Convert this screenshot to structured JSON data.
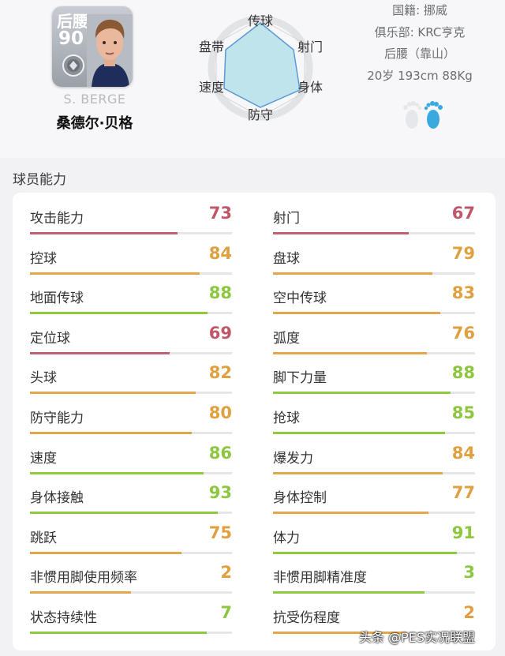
{
  "player": {
    "position": "后腰",
    "overall": "90",
    "name_en": "S. BERGE",
    "name_cn": "桑德尔·贝格"
  },
  "radar": {
    "labels": {
      "top": "传球",
      "top_right": "射门",
      "bottom_right": "身体",
      "bottom": "防守",
      "bottom_left": "速度",
      "top_left": "盘带"
    }
  },
  "info": {
    "nationality": "国籍: 挪威",
    "club": "俱乐部: KRC亨克",
    "role": "后腰（靠山）",
    "physical": "20岁 193cm 88Kg"
  },
  "section_title": "球员能力",
  "colors": {
    "red": "#c0566a",
    "orange": "#e0a040",
    "green": "#8dc63f",
    "bar_red": "#c06070",
    "bar_orange": "#e3a64a",
    "bar_green": "#8fcb3c"
  },
  "left_stats": [
    {
      "label": "攻击能力",
      "value": "73",
      "level": 73,
      "tier": "red"
    },
    {
      "label": "控球",
      "value": "84",
      "level": 84,
      "tier": "orange"
    },
    {
      "label": "地面传球",
      "value": "88",
      "level": 88,
      "tier": "green"
    },
    {
      "label": "定位球",
      "value": "69",
      "level": 69,
      "tier": "red"
    },
    {
      "label": "头球",
      "value": "82",
      "level": 82,
      "tier": "orange"
    },
    {
      "label": "防守能力",
      "value": "80",
      "level": 80,
      "tier": "orange"
    },
    {
      "label": "速度",
      "value": "86",
      "level": 86,
      "tier": "green"
    },
    {
      "label": "身体接触",
      "value": "93",
      "level": 93,
      "tier": "green"
    },
    {
      "label": "跳跃",
      "value": "75",
      "level": 75,
      "tier": "orange"
    },
    {
      "label": "非惯用脚使用频率",
      "value": "2",
      "level": 50,
      "tier": "orange"
    },
    {
      "label": "状态持续性",
      "value": "7",
      "level": 87.5,
      "tier": "green"
    }
  ],
  "right_stats": [
    {
      "label": "射门",
      "value": "67",
      "level": 67,
      "tier": "red"
    },
    {
      "label": "盘球",
      "value": "79",
      "level": 79,
      "tier": "orange"
    },
    {
      "label": "空中传球",
      "value": "83",
      "level": 83,
      "tier": "orange"
    },
    {
      "label": "弧度",
      "value": "76",
      "level": 76,
      "tier": "orange"
    },
    {
      "label": "脚下力量",
      "value": "88",
      "level": 88,
      "tier": "green"
    },
    {
      "label": "抢球",
      "value": "85",
      "level": 85,
      "tier": "green"
    },
    {
      "label": "爆发力",
      "value": "84",
      "level": 84,
      "tier": "orange"
    },
    {
      "label": "身体控制",
      "value": "77",
      "level": 77,
      "tier": "orange"
    },
    {
      "label": "体力",
      "value": "91",
      "level": 91,
      "tier": "green"
    },
    {
      "label": "非惯用脚精准度",
      "value": "3",
      "level": 75,
      "tier": "green"
    },
    {
      "label": "抗受伤程度",
      "value": "2",
      "level": 66,
      "tier": "orange"
    }
  ],
  "watermark": "头条 @PES实况联盟"
}
